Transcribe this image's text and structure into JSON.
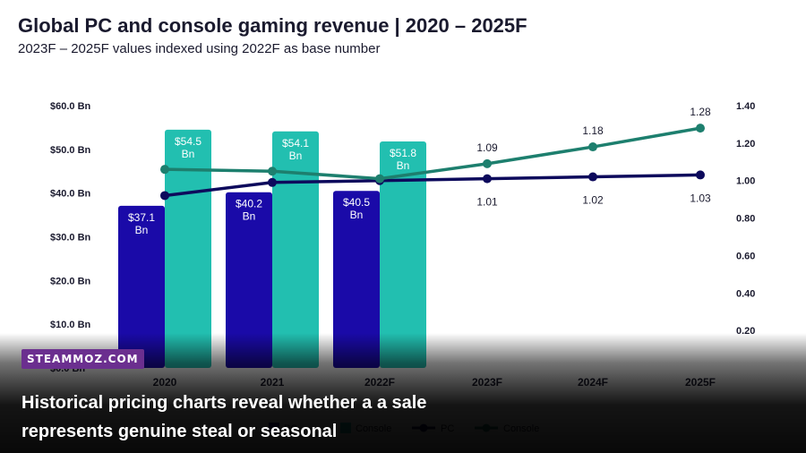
{
  "header": {
    "title": "Global PC and console gaming revenue | 2020 – 2025F",
    "subtitle": "2023F – 2025F values indexed using 2022F as base number"
  },
  "chart_data": {
    "type": "bar",
    "categories": [
      "2020",
      "2021",
      "2022F",
      "2023F",
      "2024F",
      "2025F"
    ],
    "bar_series": [
      {
        "name": "PC",
        "color": "#1a0aa8",
        "values": [
          37.1,
          40.2,
          40.5,
          null,
          null,
          null
        ],
        "labels": [
          "$37.1 Bn",
          "$40.2 Bn",
          "$40.5 Bn"
        ]
      },
      {
        "name": "Console",
        "color": "#22bfb0",
        "values": [
          54.5,
          54.1,
          51.8,
          null,
          null,
          null
        ],
        "labels": [
          "$54.5 Bn",
          "$54.1 Bn",
          "$51.8 Bn"
        ]
      }
    ],
    "line_series": [
      {
        "name": "PC",
        "color": "#0d0a5c",
        "values": [
          0.92,
          0.99,
          1.0,
          1.01,
          1.02,
          1.03
        ],
        "labels": [
          null,
          null,
          null,
          "1.01",
          "1.02",
          "1.03"
        ]
      },
      {
        "name": "Console",
        "color": "#1d7f6e",
        "values": [
          1.06,
          1.05,
          1.01,
          1.09,
          1.18,
          1.28
        ],
        "labels": [
          null,
          null,
          null,
          "1.09",
          "1.18",
          "1.28"
        ]
      }
    ],
    "y_left": {
      "min": 0,
      "max": 60,
      "ticks": [
        "$0.0 Bn",
        "$10.0 Bn",
        "$20.0 Bn",
        "$30.0 Bn",
        "$40.0 Bn",
        "$50.0 Bn",
        "$60.0 Bn"
      ]
    },
    "y_right": {
      "min": 0,
      "max": 1.4,
      "ticks": [
        "0.20",
        "0.40",
        "0.60",
        "0.80",
        "1.00",
        "1.20",
        "1.40"
      ]
    },
    "legend": [
      {
        "kind": "bar",
        "name": "PC",
        "color": "#1a0aa8"
      },
      {
        "kind": "bar",
        "name": "Console",
        "color": "#22bfb0"
      },
      {
        "kind": "line",
        "name": "PC",
        "color": "#0d0a5c"
      },
      {
        "kind": "line",
        "name": "Console",
        "color": "#1d7f6e"
      }
    ],
    "legend_position": "bottom-center",
    "grid": false
  },
  "overlay": {
    "badge": "STEAMMOZ.COM",
    "caption": "Historical pricing charts reveal whether a a sale represents genuine steal or seasonal"
  }
}
